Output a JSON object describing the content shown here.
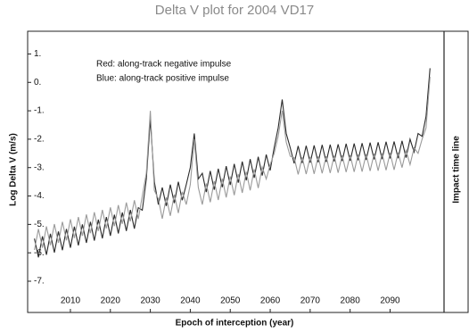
{
  "chart_data": {
    "type": "line",
    "title": "Delta V plot for 2004 VD17",
    "x_label": "Epoch of interception (year)",
    "y_label": "Log Delta V (m/s)",
    "annotation": "Impact time line",
    "xlim": [
      1999.3,
      2103.5
    ],
    "ylim": [
      -8.1,
      1.8
    ],
    "xticks": [
      2010,
      2020,
      2030,
      2040,
      2050,
      2060,
      2070,
      2080,
      2090
    ],
    "yticks": [
      {
        "value": 1,
        "label": "1."
      },
      {
        "value": 0,
        "label": "0."
      },
      {
        "value": -1,
        "label": "-1."
      },
      {
        "value": -2,
        "label": "-2."
      },
      {
        "value": -3,
        "label": "-3."
      },
      {
        "value": -4,
        "label": "-4."
      },
      {
        "value": -5,
        "label": "-5."
      },
      {
        "value": -6,
        "label": "-6."
      },
      {
        "value": -7,
        "label": "-7."
      }
    ],
    "x": [
      2001,
      2002,
      2003,
      2004,
      2005,
      2006,
      2007,
      2008,
      2009,
      2010,
      2011,
      2012,
      2013,
      2014,
      2015,
      2016,
      2017,
      2018,
      2019,
      2020,
      2021,
      2022,
      2023,
      2024,
      2025,
      2026,
      2027,
      2028,
      2029,
      2030,
      2031,
      2032,
      2033,
      2034,
      2035,
      2036,
      2037,
      2038,
      2039,
      2040,
      2041,
      2042,
      2043,
      2044,
      2045,
      2046,
      2047,
      2048,
      2049,
      2050,
      2051,
      2052,
      2053,
      2054,
      2055,
      2056,
      2057,
      2058,
      2059,
      2060,
      2061,
      2062,
      2063,
      2064,
      2065,
      2066,
      2067,
      2068,
      2069,
      2070,
      2071,
      2072,
      2073,
      2074,
      2075,
      2076,
      2077,
      2078,
      2079,
      2080,
      2081,
      2082,
      2083,
      2084,
      2085,
      2086,
      2087,
      2088,
      2089,
      2090,
      2091,
      2092,
      2093,
      2094,
      2095,
      2096,
      2097,
      2098,
      2099,
      2100
    ],
    "series": [
      {
        "name": "Red: along-track negative impulse",
        "color": "#2a2a2a",
        "values": [
          -5.5,
          -6.16,
          -5.42,
          -6.07,
          -5.33,
          -5.99,
          -5.25,
          -5.91,
          -5.16,
          -5.82,
          -5.08,
          -5.74,
          -5.0,
          -5.65,
          -4.91,
          -5.57,
          -4.83,
          -5.49,
          -4.74,
          -5.4,
          -4.66,
          -5.32,
          -4.58,
          -5.23,
          -4.49,
          -5.15,
          -4.41,
          -4.5,
          -3.4,
          -1.3,
          -3.5,
          -4.3,
          -3.7,
          -4.35,
          -3.6,
          -4.25,
          -3.5,
          -4.15,
          -3.6,
          -3.0,
          -1.8,
          -3.4,
          -3.2,
          -3.86,
          -3.12,
          -3.78,
          -3.04,
          -3.69,
          -2.95,
          -3.61,
          -2.87,
          -3.53,
          -2.79,
          -3.45,
          -2.7,
          -3.36,
          -2.62,
          -3.28,
          -2.54,
          -3.1,
          -2.3,
          -1.6,
          -0.6,
          -1.8,
          -2.3,
          -2.85,
          -2.24,
          -2.84,
          -2.23,
          -2.83,
          -2.22,
          -2.81,
          -2.2,
          -2.8,
          -2.19,
          -2.78,
          -2.18,
          -2.77,
          -2.16,
          -2.76,
          -2.15,
          -2.74,
          -2.14,
          -2.73,
          -2.12,
          -2.71,
          -2.11,
          -2.7,
          -2.09,
          -2.68,
          -2.08,
          -2.67,
          -2.06,
          -2.65,
          -2.0,
          -2.45,
          -1.8,
          -1.9,
          -1.2,
          0.5
        ]
      },
      {
        "name": "Blue: along-track positive impulse",
        "color": "#9a9a9a",
        "values": [
          -5.9,
          -5.16,
          -5.82,
          -5.07,
          -5.73,
          -4.99,
          -5.65,
          -4.91,
          -5.56,
          -4.82,
          -5.48,
          -4.74,
          -5.4,
          -4.65,
          -5.31,
          -4.57,
          -5.23,
          -4.49,
          -5.14,
          -4.4,
          -5.06,
          -4.32,
          -4.98,
          -4.23,
          -4.89,
          -4.15,
          -4.81,
          -4.0,
          -3.2,
          -1.0,
          -3.8,
          -4.1,
          -4.8,
          -4.05,
          -4.7,
          -3.95,
          -4.6,
          -3.85,
          -4.3,
          -3.6,
          -2.0,
          -3.7,
          -4.3,
          -3.56,
          -4.22,
          -3.48,
          -4.14,
          -3.39,
          -4.05,
          -3.31,
          -3.97,
          -3.23,
          -3.89,
          -3.15,
          -3.8,
          -3.06,
          -3.72,
          -2.98,
          -3.4,
          -2.9,
          -2.5,
          -1.9,
          -1.0,
          -2.1,
          -2.6,
          -2.65,
          -3.24,
          -2.64,
          -3.23,
          -2.62,
          -3.22,
          -2.61,
          -3.2,
          -2.6,
          -3.19,
          -2.58,
          -3.18,
          -2.57,
          -3.16,
          -2.56,
          -3.15,
          -2.54,
          -3.14,
          -2.53,
          -3.12,
          -2.51,
          -3.11,
          -2.5,
          -3.09,
          -2.48,
          -3.08,
          -2.47,
          -3.0,
          -2.4,
          -2.9,
          -2.3,
          -2.5,
          -2.0,
          -1.6,
          0.2
        ]
      }
    ]
  }
}
